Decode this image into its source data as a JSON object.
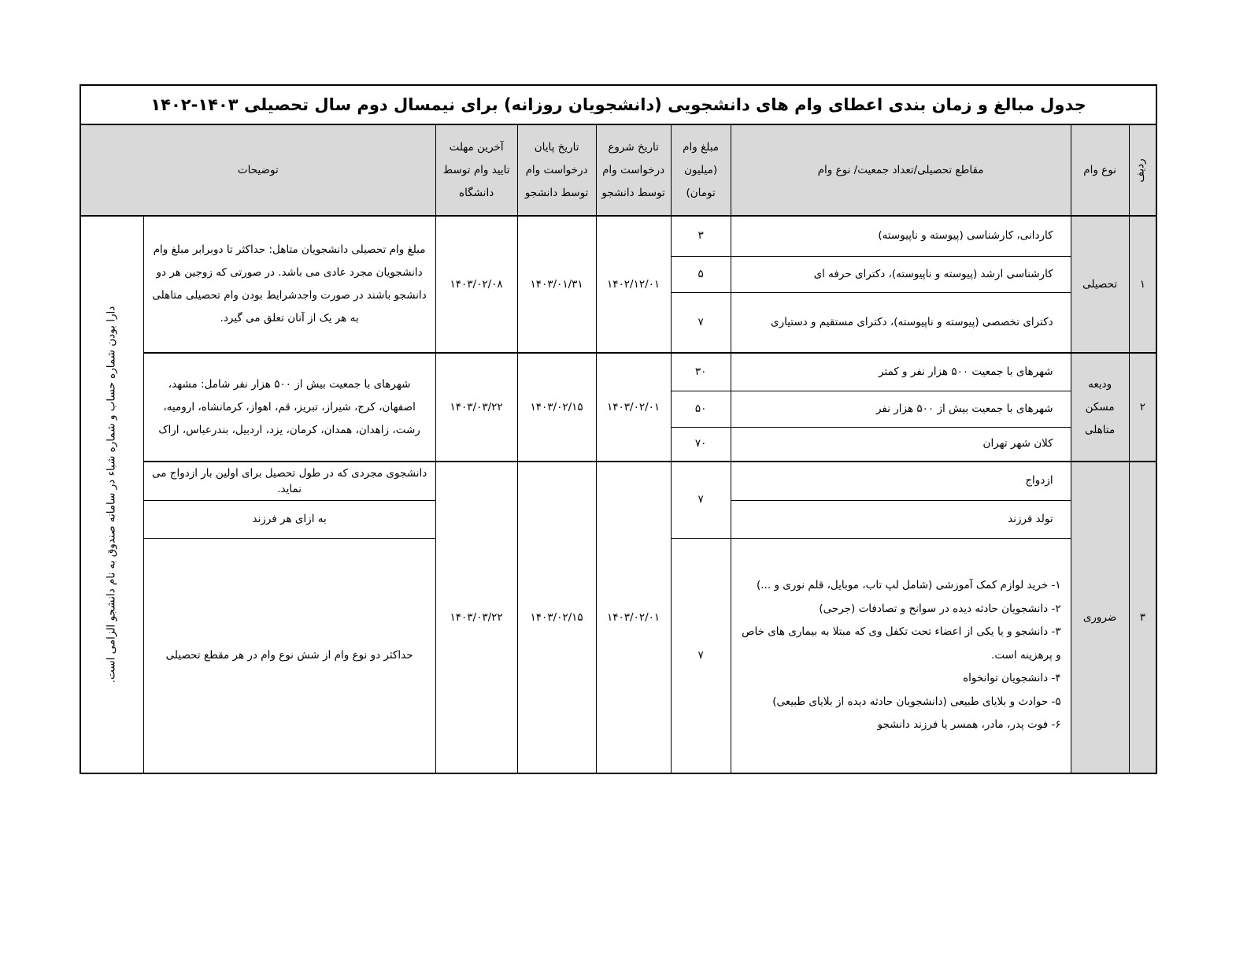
{
  "title": "جدول مبالغ و زمان بندی اعطای وام های دانشجویی (دانشجویان روزانه) برای نیمسال دوم سال تحصیلی ۱۴۰۳-۱۴۰۲",
  "headers": {
    "row_no": "ردیف",
    "loan_type": "نوع وام",
    "sections": "مقاطع تحصیلی/تعداد جمعیت/ نوع وام",
    "amount": "مبلغ وام (میلیون تومان)",
    "start": "تاریخ شروع درخواست وام توسط دانشجو",
    "end": "تاریخ پایان درخواست وام توسط دانشجو",
    "deadline": "آخرین مهلت تایید وام توسط دانشگاه",
    "description": "توضیحات"
  },
  "side_note": "دارا بودن شماره حساب و شماره شباء در سامانه صندوق به نام دانشجو الزامی است.",
  "groups": [
    {
      "row_no": "۱",
      "loan_type": "تحصیلی",
      "start": "۱۴۰۲/۱۲/۰۱",
      "end": "۱۴۰۳/۰۱/۳۱",
      "deadline": "۱۴۰۳/۰۲/۰۸",
      "description": "مبلغ وام تحصیلی دانشجویان متاهل: حداکثر تا دوبرابر مبلغ وام دانشجویان مجرد عادی می باشد. در صورتی که زوجین هر دو دانشجو باشند در صورت واجدشرایط بودن وام تحصیلی متاهلی به هر یک از آنان تعلق می گیرد.",
      "items": [
        {
          "section": "کاردانی، کارشناسی (پیوسته و ناپیوسته)",
          "amount": "۳"
        },
        {
          "section": "کارشناسی ارشد (پیوسته و ناپیوسته)، دکترای حرفه ای",
          "amount": "۵"
        },
        {
          "section": "دکترای تخصصی (پیوسته و ناپیوسته)، دکترای مستقیم و دستیاری",
          "amount": "۷"
        }
      ]
    },
    {
      "row_no": "۲",
      "loan_type": "ودیعه مسکن متاهلی",
      "start": "۱۴۰۳/۰۲/۰۱",
      "end": "۱۴۰۳/۰۲/۱۵",
      "deadline": "۱۴۰۳/۰۳/۲۲",
      "description": "شهرهای با جمعیت بیش از ۵۰۰ هزار نفر شامل: مشهد، اصفهان، کرج، شیراز، تبریز، قم، اهواز، کرمانشاه، ارومیه، رشت، زاهدان، همدان، کرمان، یزد، اردبیل، بندرعباس، اراک",
      "items": [
        {
          "section": "شهرهای با جمعیت ۵۰۰ هزار نفر و کمتر",
          "amount": "۳۰"
        },
        {
          "section": "شهرهای با جمعیت بیش از ۵۰۰ هزار نفر",
          "amount": "۵۰"
        },
        {
          "section": "کلان شهر تهران",
          "amount": "۷۰"
        }
      ]
    },
    {
      "row_no": "۳",
      "loan_type": "ضروری",
      "start": "۱۴۰۳/۰۲/۰۱",
      "end": "۱۴۰۳/۰۲/۱۵",
      "deadline": "۱۴۰۳/۰۳/۲۲",
      "items": [
        {
          "section": "ازدواج",
          "description": "دانشجوی مجردی که در طول تحصیل برای اولین بار ازدواج می نماید."
        },
        {
          "section": "تولد فرزند",
          "description": "به ازای هر فرزند"
        },
        {
          "section_list": [
            "۱- خرید لوازم کمک آموزشی (شامل لپ تاب، موبایل، قلم نوری و ...)",
            "۲- دانشجویان حادثه دیده در سوانح و تصادفات (جرحی)",
            "۳-  دانشجو و یا یکی از اعضاء تحت تکفل وی که مبتلا به بیماری های خاص و پرهزینه است.",
            "۴- دانشجویان توانخواه",
            "۵- حوادث و بلایای طبیعی (دانشجویان حادثه دیده از بلایای طبیعی)",
            "۶- فوت پدر، مادر، همسر یا فرزند دانشجو"
          ],
          "description": "حداکثر دو نوع وام از شش نوع وام در هر مقطع تحصیلی"
        }
      ],
      "amount_marriage_birth": "۷",
      "amount_other": "۷"
    }
  ]
}
